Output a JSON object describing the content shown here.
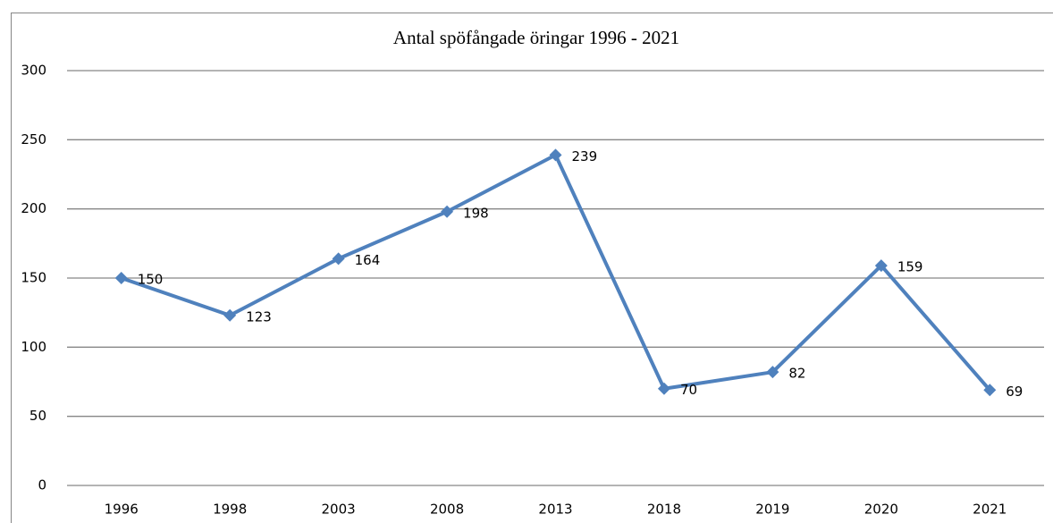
{
  "chart_data": {
    "type": "line",
    "title": "Antal spöfångade öringar 1996 - 2021",
    "categories": [
      "1996",
      "1998",
      "2003",
      "2008",
      "2013",
      "2018",
      "2019",
      "2020",
      "2021"
    ],
    "series": [
      {
        "name": "Antal",
        "color": "#4f81bd",
        "values": [
          150,
          123,
          164,
          198,
          239,
          70,
          82,
          159,
          69
        ]
      }
    ],
    "ylim": [
      0,
      300
    ],
    "yticks": [
      0,
      50,
      100,
      150,
      200,
      250,
      300
    ],
    "grid": true,
    "data_labels": true
  }
}
